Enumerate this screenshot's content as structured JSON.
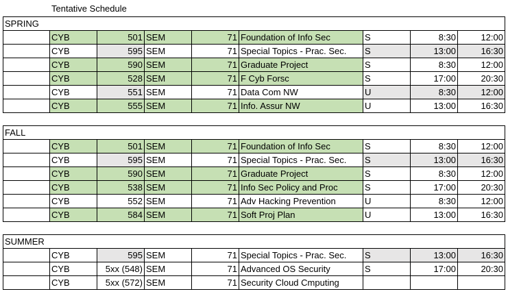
{
  "title": "Tentative Schedule",
  "sections": [
    {
      "label": "SPRING",
      "rows": [
        {
          "subject": "CYB",
          "number": "501",
          "type": "SEM",
          "section": "71",
          "course": "Foundation of Info Sec",
          "mode": "S",
          "start": "8:30",
          "end": "12:00",
          "shade": "green"
        },
        {
          "subject": "CYB",
          "number": "595",
          "type": "SEM",
          "section": "71",
          "course": "Special Topics - Prac. Sec.",
          "mode": "S",
          "start": "13:00",
          "end": "16:30",
          "shade": "gray"
        },
        {
          "subject": "CYB",
          "number": "590",
          "type": "SEM",
          "section": "71",
          "course": "Graduate Project",
          "mode": "S",
          "start": "8:30",
          "end": "12:00",
          "shade": "green"
        },
        {
          "subject": "CYB",
          "number": "528",
          "type": "SEM",
          "section": "71",
          "course": "F Cyb Forsc",
          "mode": "S",
          "start": "17:00",
          "end": "20:30",
          "shade": "green"
        },
        {
          "subject": "CYB",
          "number": "551",
          "type": "SEM",
          "section": "71",
          "course": "Data Com NW",
          "mode": "U",
          "start": "8:30",
          "end": "12:00",
          "shade": "gray"
        },
        {
          "subject": "CYB",
          "number": "555",
          "type": "SEM",
          "section": "71",
          "course": "Info. Assur NW",
          "mode": "U",
          "start": "13:00",
          "end": "16:30",
          "shade": "green"
        }
      ]
    },
    {
      "label": "FALL",
      "rows": [
        {
          "subject": "CYB",
          "number": "501",
          "type": "SEM",
          "section": "71",
          "course": "Foundation of Info Sec",
          "mode": "S",
          "start": "8:30",
          "end": "12:00",
          "shade": "green"
        },
        {
          "subject": "CYB",
          "number": "595",
          "type": "SEM",
          "section": "71",
          "course": "Special Topics - Prac. Sec.",
          "mode": "S",
          "start": "13:00",
          "end": "16:30",
          "shade": "gray"
        },
        {
          "subject": "CYB",
          "number": "590",
          "type": "SEM",
          "section": "71",
          "course": "Graduate Project",
          "mode": "S",
          "start": "8:30",
          "end": "12:00",
          "shade": "green"
        },
        {
          "subject": "CYB",
          "number": "538",
          "type": "SEM",
          "section": "71",
          "course": "Info Sec Policy and Proc",
          "mode": "S",
          "start": "17:00",
          "end": "20:30",
          "shade": "green"
        },
        {
          "subject": "CYB",
          "number": "552",
          "type": "SEM",
          "section": "71",
          "course": "Adv Hacking Prevention",
          "mode": "U",
          "start": "8:30",
          "end": "12:00",
          "shade": "none"
        },
        {
          "subject": "CYB",
          "number": "584",
          "type": "SEM",
          "section": "71",
          "course": "Soft Proj Plan",
          "mode": "U",
          "start": "13:00",
          "end": "16:30",
          "shade": "green"
        }
      ]
    },
    {
      "label": "SUMMER",
      "rows": [
        {
          "subject": "CYB",
          "number": "595",
          "type": "SEM",
          "section": "71",
          "course": "Special Topics - Prac. Sec.",
          "mode": "S",
          "start": "13:00",
          "end": "16:30",
          "shade": "gray"
        },
        {
          "subject": "CYB",
          "number": "5xx (548)",
          "type": "SEM",
          "section": "71",
          "course": "Advanced OS Security",
          "mode": "S",
          "start": "17:00",
          "end": "20:30",
          "shade": "none"
        },
        {
          "subject": "CYB",
          "number": "5xx (572)",
          "type": "SEM",
          "section": "71",
          "course": "Security Cloud Cmputing",
          "mode": "",
          "start": "",
          "end": "",
          "shade": "none"
        }
      ]
    }
  ]
}
